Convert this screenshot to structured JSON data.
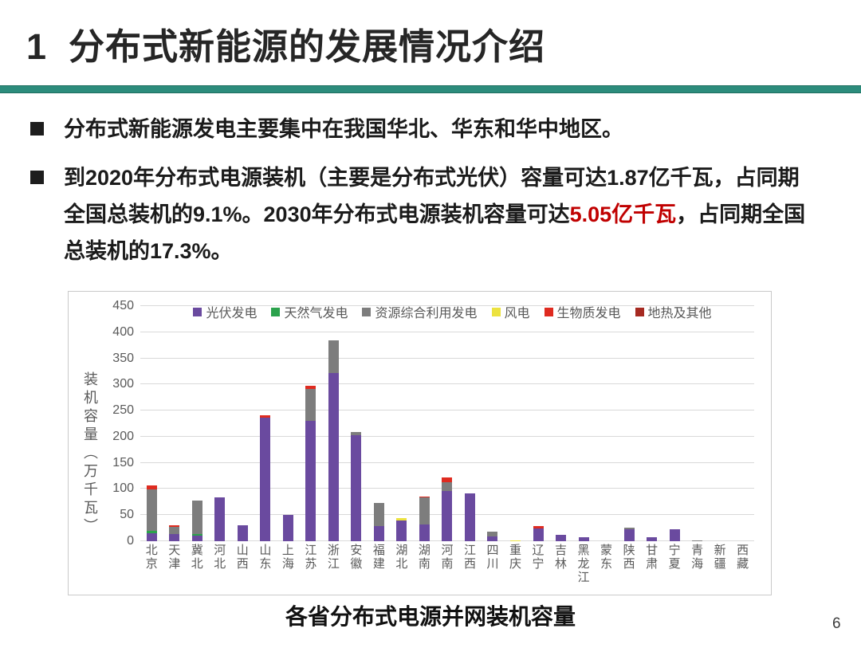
{
  "slide": {
    "title": "1  分布式新能源的发展情况介绍",
    "bullets": [
      {
        "text": "分布式新能源发电主要集中在我国华北、华东和华中地区。"
      },
      {
        "pre": "到2020年分布式电源装机（主要是分布式光伏）容量可达1.87亿千瓦，占同期全国总装机的9.1%。2030年分布式电源装机容量可达",
        "highlight": "5.05亿千瓦",
        "post": "，占同期全国总装机的17.3%。"
      }
    ],
    "caption": "各省分布式电源并网装机容量",
    "page_number": "6"
  },
  "colors": {
    "accent_teal": "#2c8c7c",
    "highlight_red": "#c00000",
    "title_text": "#262626",
    "axis_text": "#595959",
    "gridline": "#d9d9d9"
  },
  "chart_data": {
    "type": "bar",
    "stacked": true,
    "title": "各省分布式电源并网装机容量",
    "xlabel": "",
    "ylabel": "装机容量（万千瓦）",
    "ylim": [
      0,
      450
    ],
    "ytick_interval": 50,
    "grid": true,
    "legend_position": "top",
    "categories": [
      "北京",
      "天津",
      "冀北",
      "河北",
      "山西",
      "山东",
      "上海",
      "江苏",
      "浙江",
      "安徽",
      "福建",
      "湖北",
      "湖南",
      "河南",
      "江西",
      "四川",
      "重庆",
      "辽宁",
      "吉林",
      "黑龙江",
      "蒙东",
      "陕西",
      "甘肃",
      "宁夏",
      "青海",
      "新疆",
      "西藏"
    ],
    "series": [
      {
        "name": "光伏发电",
        "color": "#6a4a9f",
        "values": [
          16,
          14,
          10,
          84,
          30,
          236,
          51,
          231,
          322,
          203,
          29,
          40,
          32,
          96,
          91,
          9,
          0,
          25,
          12,
          7,
          0,
          23,
          7,
          23,
          0,
          0,
          0
        ]
      },
      {
        "name": "天然气发电",
        "color": "#2ba24c",
        "values": [
          4,
          0,
          3,
          0,
          0,
          0,
          0,
          0,
          0,
          0,
          0,
          0,
          0,
          0,
          0,
          0,
          0,
          0,
          0,
          0,
          0,
          0,
          0,
          0,
          0,
          0,
          0
        ]
      },
      {
        "name": "资源综合利用发电",
        "color": "#7d7d7d",
        "values": [
          80,
          13,
          64,
          0,
          0,
          0,
          0,
          60,
          63,
          6,
          45,
          0,
          52,
          17,
          0,
          10,
          0,
          0,
          0,
          0,
          0,
          3,
          0,
          0,
          2,
          0,
          0
        ]
      },
      {
        "name": "风电",
        "color": "#ece23f",
        "values": [
          0,
          0,
          0,
          0,
          0,
          0,
          0,
          0,
          0,
          0,
          0,
          4,
          0,
          0,
          0,
          0,
          2,
          0,
          0,
          0,
          0,
          0,
          0,
          0,
          0,
          0,
          0
        ]
      },
      {
        "name": "生物质发电",
        "color": "#df2b20",
        "values": [
          7,
          4,
          0,
          0,
          0,
          5,
          0,
          6,
          0,
          0,
          0,
          0,
          2,
          9,
          0,
          0,
          0,
          4,
          0,
          0,
          0,
          0,
          0,
          0,
          0,
          0,
          0
        ]
      },
      {
        "name": "地热及其他",
        "color": "#a62a21",
        "values": [
          0,
          0,
          0,
          0,
          0,
          0,
          0,
          0,
          0,
          0,
          0,
          0,
          0,
          0,
          0,
          0,
          0,
          0,
          0,
          0,
          0,
          0,
          0,
          0,
          0,
          0,
          0
        ]
      }
    ]
  }
}
